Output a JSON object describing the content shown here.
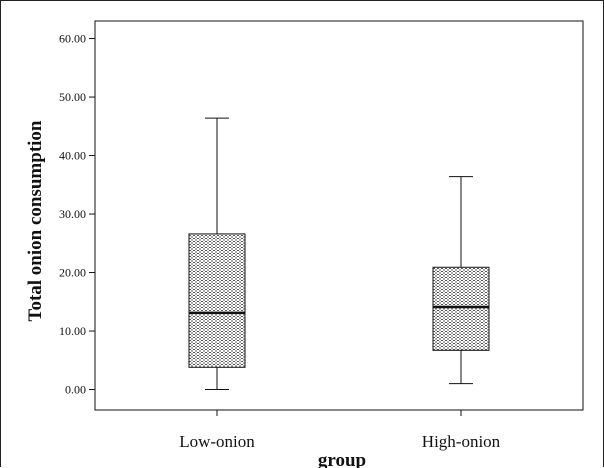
{
  "chart_data": {
    "type": "box",
    "xlabel": "group",
    "ylabel": "Total onion consumption",
    "ylim": [
      -3.5,
      63
    ],
    "y_ticks": [
      {
        "value": 0,
        "label": "0.00"
      },
      {
        "value": 10,
        "label": "10.00"
      },
      {
        "value": 20,
        "label": "20.00"
      },
      {
        "value": 30,
        "label": "30.00"
      },
      {
        "value": 40,
        "label": "40.00"
      },
      {
        "value": 50,
        "label": "50.00"
      },
      {
        "value": 60,
        "label": "60.00"
      }
    ],
    "categories": [
      "Low-onion",
      "High-onion"
    ],
    "boxes": [
      {
        "name": "Low-onion",
        "min": 0.0,
        "q1": 3.8,
        "median": 13.1,
        "q3": 26.6,
        "max": 46.4
      },
      {
        "name": "High-onion",
        "min": 1.0,
        "q1": 6.7,
        "median": 14.1,
        "q3": 20.9,
        "max": 36.4
      }
    ],
    "colors": {
      "box_fill_pattern": "dotted-gray",
      "line": "#111111"
    },
    "grid": false,
    "legend": "none"
  }
}
